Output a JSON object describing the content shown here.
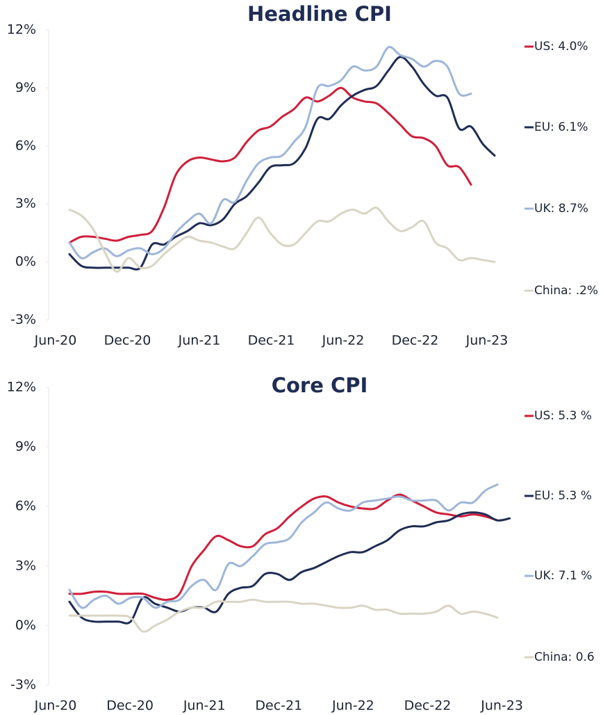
{
  "chart_data": [
    {
      "type": "line",
      "title": "Headline CPI",
      "categories": [
        "Jun-20",
        null,
        null,
        null,
        null,
        null,
        "Dec-20",
        null,
        null,
        null,
        null,
        null,
        "Jun-21",
        null,
        null,
        null,
        null,
        null,
        "Dec-21",
        null,
        null,
        null,
        null,
        null,
        "Jun-22",
        null,
        null,
        null,
        null,
        null,
        "Dec-22",
        null,
        null,
        null,
        null,
        null,
        "Jun-23"
      ],
      "ylim": [
        -3,
        12
      ],
      "yticks": [
        {
          "value": -3,
          "label": "-3%"
        },
        {
          "value": 0,
          "label": "0%"
        },
        {
          "value": 3,
          "label": "3%"
        },
        {
          "value": 6,
          "label": "6%"
        },
        {
          "value": 9,
          "label": "9%"
        },
        {
          "value": 12,
          "label": "12%"
        }
      ],
      "grid": false,
      "series": [
        {
          "name": "US: 4.0%",
          "color": "#cf1f3a",
          "values": [
            1.0,
            1.3,
            1.3,
            1.2,
            1.1,
            1.3,
            1.4,
            1.6,
            2.8,
            4.5,
            5.2,
            5.4,
            5.3,
            5.2,
            5.4,
            6.2,
            6.8,
            7.0,
            7.5,
            7.9,
            8.5,
            8.3,
            8.6,
            9.0,
            8.5,
            8.3,
            8.2,
            7.7,
            7.1,
            6.5,
            6.4,
            6.0,
            5.0,
            4.9,
            4.0,
            null,
            null
          ]
        },
        {
          "name": "EU: 6.1%",
          "color": "#1f2d54",
          "values": [
            0.4,
            -0.2,
            -0.3,
            -0.3,
            -0.3,
            -0.3,
            -0.3,
            0.9,
            0.9,
            1.3,
            1.6,
            2.0,
            1.9,
            2.2,
            3.0,
            3.4,
            4.1,
            4.9,
            5.0,
            5.1,
            5.9,
            7.4,
            7.4,
            8.1,
            8.6,
            8.9,
            9.1,
            9.9,
            10.6,
            10.1,
            9.2,
            8.6,
            8.5,
            6.9,
            7.0,
            6.1,
            5.5
          ]
        },
        {
          "name": "UK: 8.7%",
          "color": "#9db6d9",
          "values": [
            1.0,
            0.2,
            0.5,
            0.7,
            0.3,
            0.6,
            0.7,
            0.4,
            0.7,
            1.5,
            2.1,
            2.5,
            2.0,
            3.2,
            3.1,
            4.2,
            5.1,
            5.4,
            5.5,
            6.2,
            7.0,
            9.0,
            9.1,
            9.4,
            10.1,
            9.9,
            10.1,
            11.1,
            10.7,
            10.5,
            10.1,
            10.4,
            10.1,
            8.7,
            8.7,
            null,
            null
          ]
        },
        {
          "name": "China: .2%",
          "color": "#d9d4c4",
          "values": [
            2.7,
            2.4,
            1.7,
            0.5,
            -0.5,
            0.2,
            -0.3,
            -0.2,
            0.4,
            0.9,
            1.3,
            1.1,
            1.0,
            0.8,
            0.7,
            1.5,
            2.3,
            1.5,
            0.9,
            0.9,
            1.5,
            2.1,
            2.1,
            2.5,
            2.7,
            2.5,
            2.8,
            2.1,
            1.6,
            1.8,
            2.1,
            1.0,
            0.7,
            0.1,
            0.2,
            0.1,
            0.0
          ]
        }
      ]
    },
    {
      "type": "line",
      "title": "Core CPI",
      "categories": [
        "Jun-20",
        null,
        null,
        null,
        null,
        null,
        "Dec-20",
        null,
        null,
        null,
        null,
        null,
        "Jun-21",
        null,
        null,
        null,
        null,
        null,
        "Dec-21",
        null,
        null,
        null,
        null,
        null,
        "Jun-22",
        null,
        null,
        null,
        null,
        null,
        "Dec-22",
        null,
        null,
        null,
        null,
        null,
        "Jun-23"
      ],
      "ylim": [
        -3,
        12
      ],
      "yticks": [
        {
          "value": -3,
          "label": "-3%"
        },
        {
          "value": 0,
          "label": "0%"
        },
        {
          "value": 3,
          "label": "3%"
        },
        {
          "value": 6,
          "label": "6%"
        },
        {
          "value": 9,
          "label": "9%"
        },
        {
          "value": 12,
          "label": "12%"
        }
      ],
      "grid": false,
      "series": [
        {
          "name": "US: 5.3 %",
          "color": "#cf1f3a",
          "values": [
            1.6,
            1.6,
            1.7,
            1.7,
            1.6,
            1.6,
            1.6,
            1.4,
            1.3,
            1.6,
            3.0,
            3.8,
            4.5,
            4.3,
            4.0,
            4.0,
            4.6,
            4.9,
            5.5,
            6.0,
            6.4,
            6.5,
            6.2,
            6.0,
            5.9,
            5.9,
            6.3,
            6.6,
            6.3,
            6.0,
            5.7,
            5.6,
            5.5,
            5.6,
            5.5,
            5.3,
            null
          ]
        },
        {
          "name": "EU: 5.3 %",
          "color": "#1f2d54",
          "values": [
            1.2,
            0.4,
            0.2,
            0.2,
            0.2,
            0.2,
            1.4,
            1.1,
            0.9,
            0.7,
            0.9,
            0.9,
            0.7,
            1.6,
            1.9,
            2.0,
            2.6,
            2.6,
            2.3,
            2.7,
            2.9,
            3.2,
            3.5,
            3.7,
            3.7,
            4.0,
            4.3,
            4.8,
            5.0,
            5.0,
            5.2,
            5.3,
            5.6,
            5.7,
            5.6,
            5.3,
            5.4
          ]
        },
        {
          "name": "UK: 7.1 %",
          "color": "#9db6d9",
          "values": [
            1.8,
            0.9,
            1.3,
            1.5,
            1.1,
            1.4,
            1.4,
            0.9,
            1.2,
            1.3,
            2.0,
            2.3,
            1.8,
            3.1,
            3.0,
            3.5,
            4.1,
            4.2,
            4.4,
            5.2,
            5.7,
            6.2,
            5.9,
            5.8,
            6.2,
            6.3,
            6.4,
            6.5,
            6.3,
            6.3,
            6.3,
            5.8,
            6.2,
            6.2,
            6.8,
            7.1,
            null
          ]
        },
        {
          "name": "China: 0.6",
          "color": "#d9d4c4",
          "values": [
            0.5,
            0.5,
            0.5,
            0.5,
            0.5,
            0.4,
            -0.3,
            0.0,
            0.3,
            0.7,
            0.9,
            0.9,
            1.2,
            1.2,
            1.2,
            1.3,
            1.2,
            1.2,
            1.2,
            1.1,
            1.1,
            1.0,
            0.9,
            0.9,
            1.0,
            0.8,
            0.8,
            0.6,
            0.6,
            0.6,
            0.7,
            1.0,
            0.6,
            0.7,
            0.6,
            0.4,
            null
          ]
        }
      ]
    }
  ]
}
